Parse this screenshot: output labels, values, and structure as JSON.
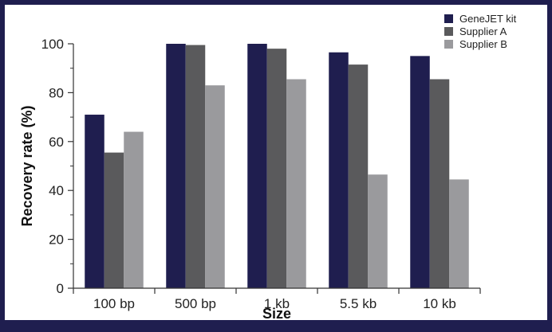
{
  "chart_data": {
    "type": "bar",
    "categories": [
      "100 bp",
      "500 bp",
      "1 kb",
      "5.5 kb",
      "10 kb"
    ],
    "series": [
      {
        "name": "GeneJET kit",
        "color": "#1f1e4f",
        "values": [
          71,
          100,
          100,
          96.5,
          95
        ]
      },
      {
        "name": "Supplier A",
        "color": "#5a5a5c",
        "values": [
          55.5,
          99.5,
          98,
          91.5,
          85.5
        ]
      },
      {
        "name": "Supplier B",
        "color": "#9a9a9d",
        "values": [
          64,
          83,
          85.5,
          46.5,
          44.5
        ]
      }
    ],
    "xlabel": "Size",
    "ylabel": "Recovery rate (%)",
    "ylim": [
      0,
      100
    ],
    "yticks": [
      0,
      20,
      40,
      60,
      80,
      100
    ],
    "grid": false,
    "legend_position": "top-right"
  }
}
